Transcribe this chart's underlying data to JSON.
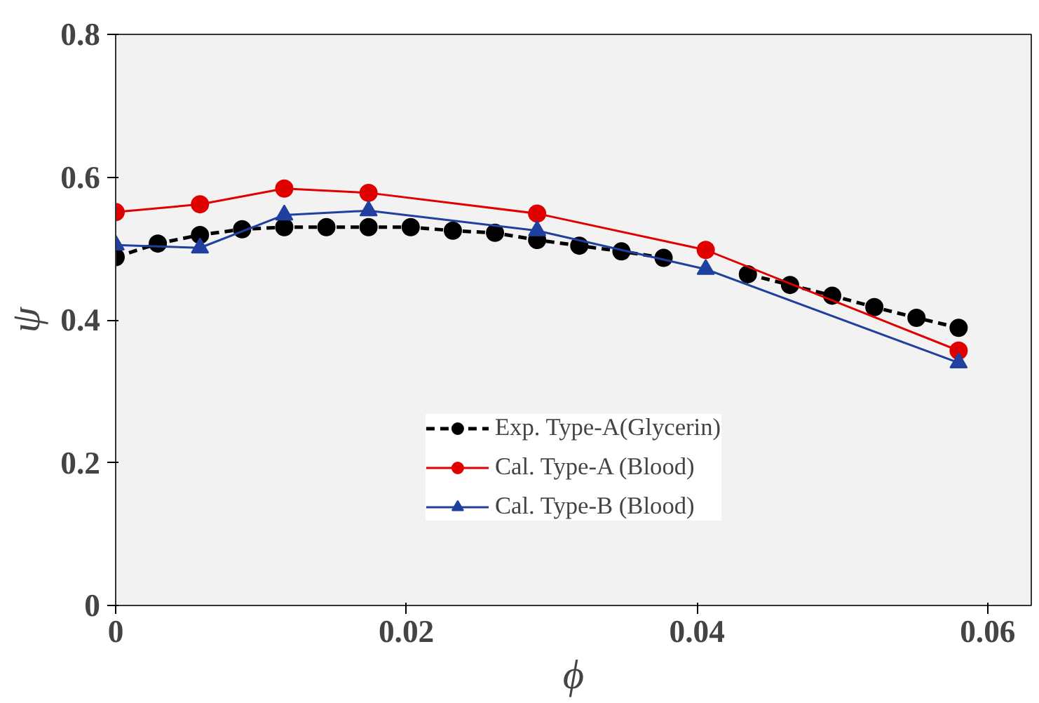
{
  "chart_data": {
    "type": "line",
    "xlabel": "ϕ",
    "ylabel": "ψ",
    "xlim": [
      0,
      0.063
    ],
    "xticks": [
      0,
      0.02,
      0.04,
      0.06
    ],
    "ylim": [
      0,
      0.8
    ],
    "yticks": [
      0,
      0.2,
      0.4,
      0.6,
      0.8
    ],
    "grid": false,
    "legend": "bottom",
    "series": [
      {
        "name": "Exp. Type-A(Glycerin)",
        "color": "#000000",
        "marker": "circle",
        "line_style": "dashed",
        "x": [
          0,
          0.0029,
          0.0058,
          0.0087,
          0.0116,
          0.0145,
          0.0174,
          0.0203,
          0.0232,
          0.0261,
          0.029,
          0.0319,
          0.0348,
          0.0377,
          0.0406,
          0.0435,
          0.0464,
          0.0493,
          0.0522,
          0.0551,
          0.058
        ],
        "values": [
          0.488,
          0.507,
          0.519,
          0.527,
          0.53,
          0.53,
          0.53,
          0.53,
          0.525,
          0.522,
          0.512,
          0.504,
          0.496,
          0.487,
          null,
          0.464,
          0.449,
          0.434,
          0.418,
          0.403,
          0.389
        ]
      },
      {
        "name": "Cal. Type-A (Blood)",
        "color": "#e00000",
        "marker": "circle",
        "line_style": "solid",
        "x": [
          0,
          0.0058,
          0.0116,
          0.0174,
          0.029,
          0.0406,
          0.058
        ],
        "values": [
          0.551,
          0.562,
          0.584,
          0.578,
          0.549,
          0.498,
          0.357
        ]
      },
      {
        "name": "Cal. Type-B (Blood)",
        "color": "#2040a0",
        "marker": "triangle",
        "line_style": "solid",
        "x": [
          0,
          0.0058,
          0.0116,
          0.0174,
          0.029,
          0.0406,
          0.058
        ],
        "values": [
          0.505,
          0.501,
          0.547,
          0.553,
          0.525,
          0.471,
          0.34
        ]
      }
    ]
  }
}
